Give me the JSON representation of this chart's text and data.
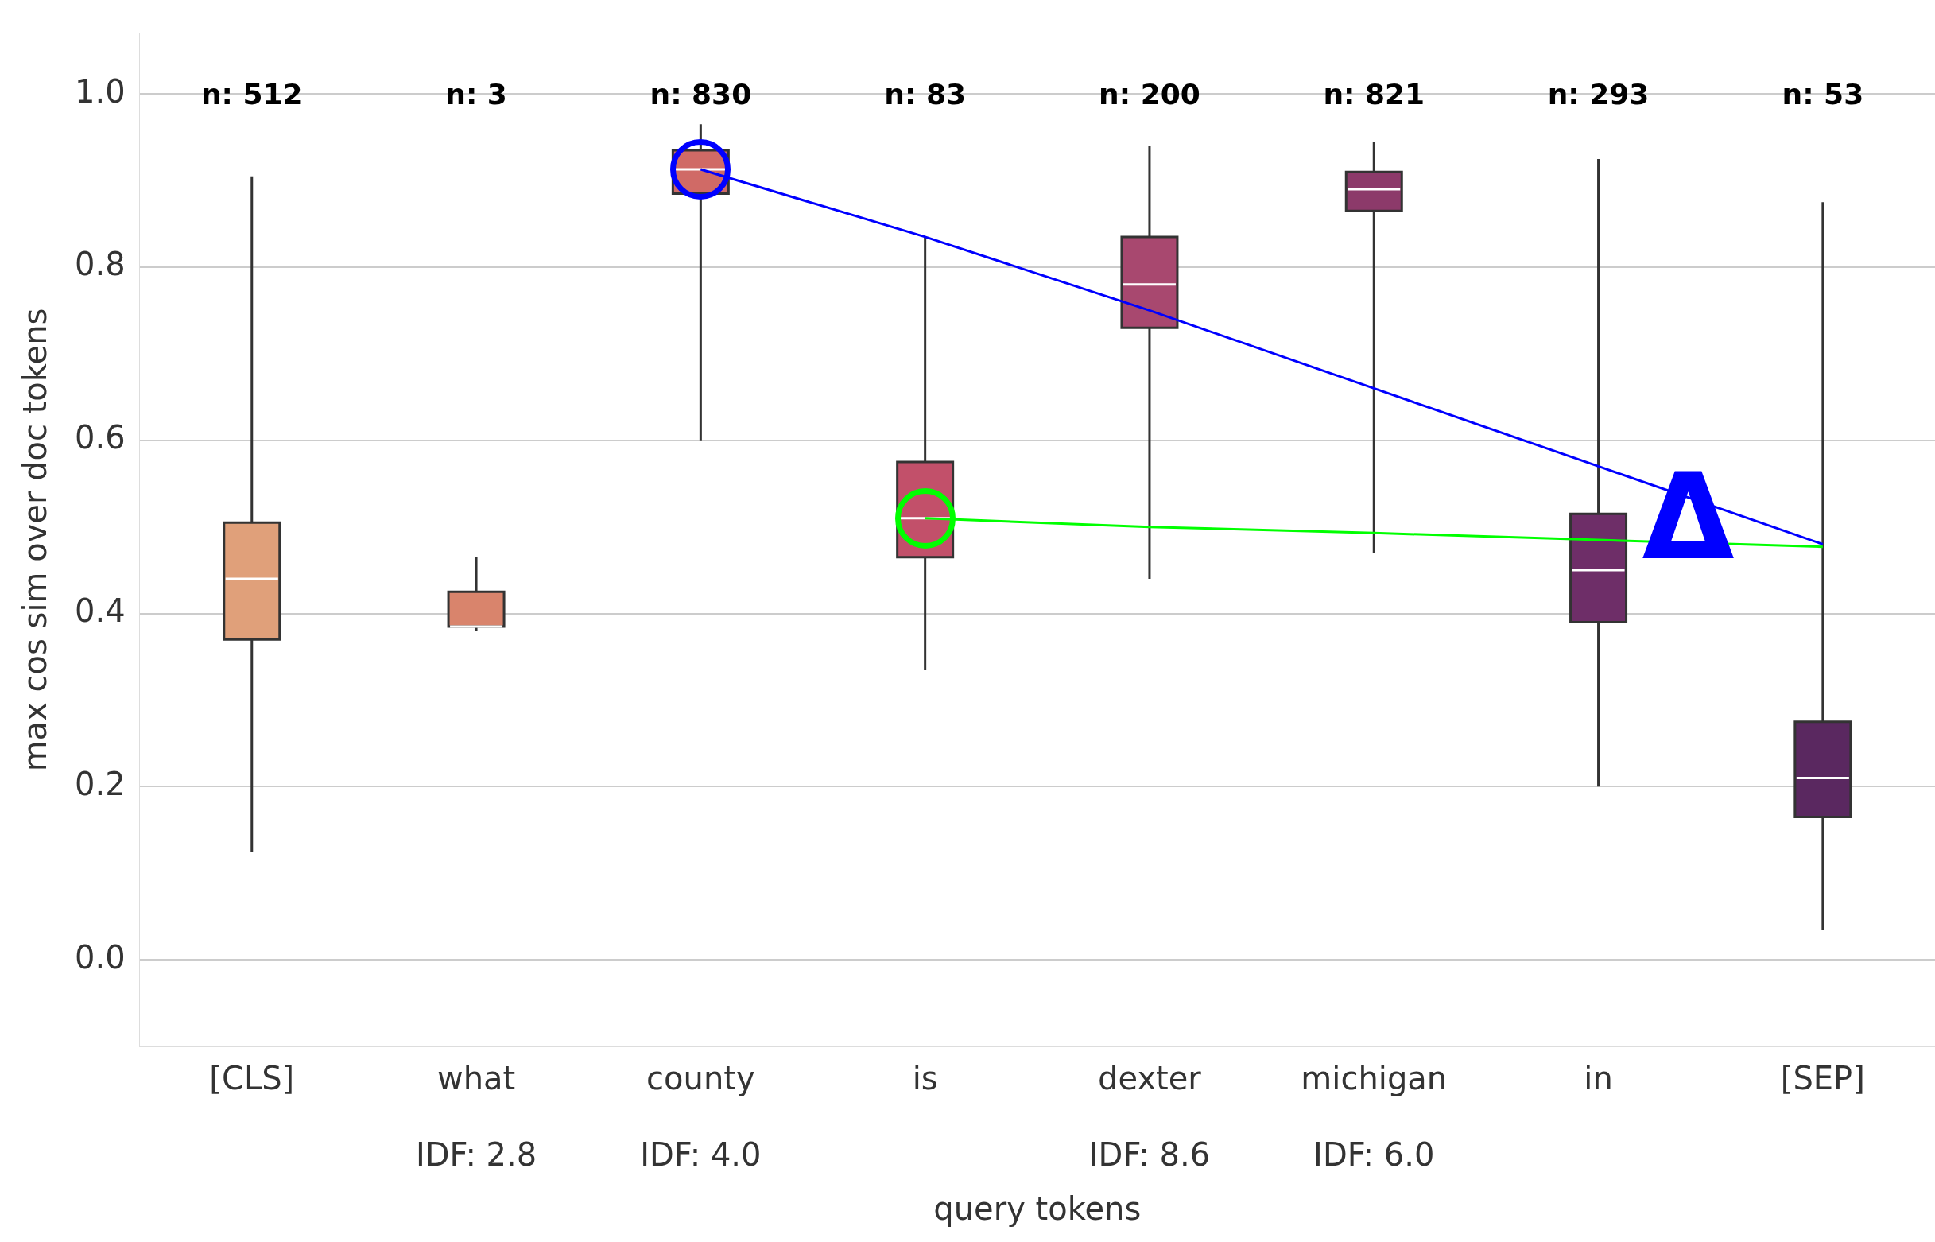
{
  "chart_data": {
    "type": "box",
    "xlabel": "query tokens",
    "ylabel": "max cos sim over doc tokens",
    "categories": [
      "[CLS]",
      "what\nIDF: 2.8",
      "county\nIDF: 4.0",
      "is",
      "dexter\nIDF: 8.6",
      "michigan\nIDF: 6.0",
      "in",
      "[SEP]"
    ],
    "colors": [
      "#e0a07a",
      "#d9846c",
      "#d06a66",
      "#c2506a",
      "#a8486f",
      "#8c3a6a",
      "#6e2e68",
      "#5a2860"
    ],
    "boxes": [
      {
        "low": 0.125,
        "q1": 0.37,
        "median": 0.44,
        "q3": 0.505,
        "high": 0.905
      },
      {
        "low": 0.38,
        "q1": 0.385,
        "median": 0.385,
        "q3": 0.425,
        "high": 0.465
      },
      {
        "low": 0.6,
        "q1": 0.885,
        "median": 0.913,
        "q3": 0.935,
        "high": 0.965
      },
      {
        "low": 0.335,
        "q1": 0.465,
        "median": 0.51,
        "q3": 0.575,
        "high": 0.835
      },
      {
        "low": 0.44,
        "q1": 0.73,
        "median": 0.78,
        "q3": 0.835,
        "high": 0.94
      },
      {
        "low": 0.47,
        "q1": 0.865,
        "median": 0.89,
        "q3": 0.91,
        "high": 0.945
      },
      {
        "low": 0.2,
        "q1": 0.39,
        "median": 0.45,
        "q3": 0.515,
        "high": 0.925
      },
      {
        "low": 0.035,
        "q1": 0.165,
        "median": 0.21,
        "q3": 0.275,
        "high": 0.875
      }
    ],
    "series": [
      {
        "type": "line",
        "color": "#0000ff",
        "values": [
          null,
          null,
          0.913,
          0.835,
          0.75,
          0.66,
          0.57,
          0.48
        ]
      },
      {
        "type": "line",
        "color": "#00ff00",
        "values": [
          null,
          null,
          null,
          0.51,
          0.5,
          0.493,
          0.485,
          0.477
        ]
      }
    ],
    "ylim": [
      -0.1,
      1.07
    ],
    "yticks": [
      {
        "value": 0,
        "label": "0.0"
      },
      0.2,
      0.4,
      0.6,
      0.8,
      {
        "value": 1,
        "label": "1.0"
      }
    ],
    "grid": "y",
    "legend": false,
    "marker": "none",
    "annotations": [
      "n: 512",
      "n: 3",
      "n: 830",
      "n: 83",
      "n: 200",
      "n: 821",
      "n: 293",
      "n: 53",
      "Δ"
    ]
  }
}
